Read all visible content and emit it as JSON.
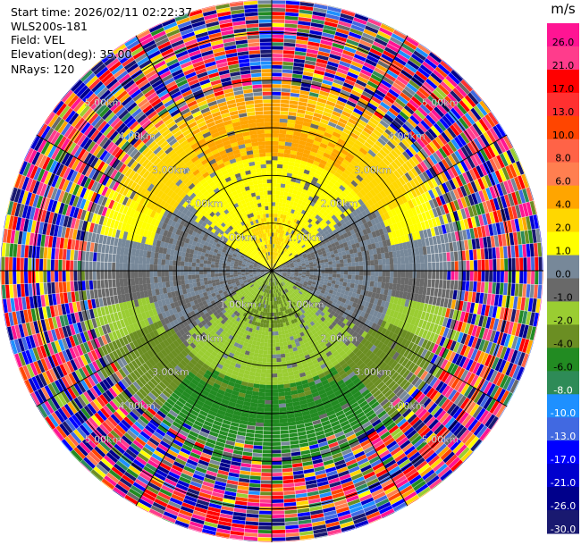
{
  "header": {
    "start_time": "Start time: 2026/02/11 02:22:37",
    "instrument": "WLS200s-181",
    "field": "Field: VEL",
    "elevation": "Elevation(deg): 35.00",
    "nrays": "NRays: 120"
  },
  "chart_data": {
    "type": "heatmap",
    "projection": "polar-ppi",
    "field": "VEL",
    "elevation_deg": 35.0,
    "nrays": 120,
    "range_rings_km": [
      1.0,
      2.0,
      3.0,
      4.0,
      5.0
    ],
    "ring_labels": [
      "1.00km",
      "2.00km",
      "3.00km",
      "4.00km",
      "5.00km"
    ],
    "max_range_km": 5.7,
    "spokes_deg": [
      0,
      30,
      60,
      90,
      120,
      150,
      180,
      210,
      240,
      270,
      300,
      330
    ],
    "velocity_pattern": {
      "toward_north": "positive (0 to 4 m/s)",
      "toward_south": "negative (-1 to -6 m/s)",
      "noise_beyond_km": 4.3
    },
    "colorbar": {
      "unit": "m/s",
      "min": -30.0,
      "max": 30.0,
      "tick_labels": [
        "26.0",
        "21.0",
        "17.0",
        "13.0",
        "10.0",
        "8.0",
        "6.0",
        "4.0",
        "2.0",
        "1.0",
        "0.0",
        "-1.0",
        "-2.0",
        "-4.0",
        "-6.0",
        "-8.0",
        "-10.0",
        "-13.0",
        "-17.0",
        "-21.0",
        "-26.0",
        "-30.0"
      ],
      "bins": [
        {
          "lo": 26,
          "hi": 30,
          "color": "#ff1493"
        },
        {
          "lo": 21,
          "hi": 26,
          "color": "#ff3c8c"
        },
        {
          "lo": 17,
          "hi": 21,
          "color": "#ff0000"
        },
        {
          "lo": 13,
          "hi": 17,
          "color": "#ff3030"
        },
        {
          "lo": 10,
          "hi": 13,
          "color": "#ff4500"
        },
        {
          "lo": 8,
          "hi": 10,
          "color": "#ff6347"
        },
        {
          "lo": 6,
          "hi": 8,
          "color": "#ff7f50"
        },
        {
          "lo": 4,
          "hi": 6,
          "color": "#ffa500"
        },
        {
          "lo": 2,
          "hi": 4,
          "color": "#ffd700"
        },
        {
          "lo": 1,
          "hi": 2,
          "color": "#ffff00"
        },
        {
          "lo": 0,
          "hi": 1,
          "color": "#778899"
        },
        {
          "lo": -1,
          "hi": 0,
          "color": "#696969"
        },
        {
          "lo": -2,
          "hi": -1,
          "color": "#9acd32"
        },
        {
          "lo": -4,
          "hi": -2,
          "color": "#6b8e23"
        },
        {
          "lo": -6,
          "hi": -4,
          "color": "#228b22"
        },
        {
          "lo": -8,
          "hi": -6,
          "color": "#2e8b57"
        },
        {
          "lo": -10,
          "hi": -8,
          "color": "#1e90ff"
        },
        {
          "lo": -13,
          "hi": -10,
          "color": "#4169e1"
        },
        {
          "lo": -17,
          "hi": -13,
          "color": "#0000ff"
        },
        {
          "lo": -21,
          "hi": -17,
          "color": "#0000cd"
        },
        {
          "lo": -26,
          "hi": -21,
          "color": "#00008b"
        },
        {
          "lo": -30,
          "hi": -26,
          "color": "#191970"
        }
      ]
    }
  }
}
